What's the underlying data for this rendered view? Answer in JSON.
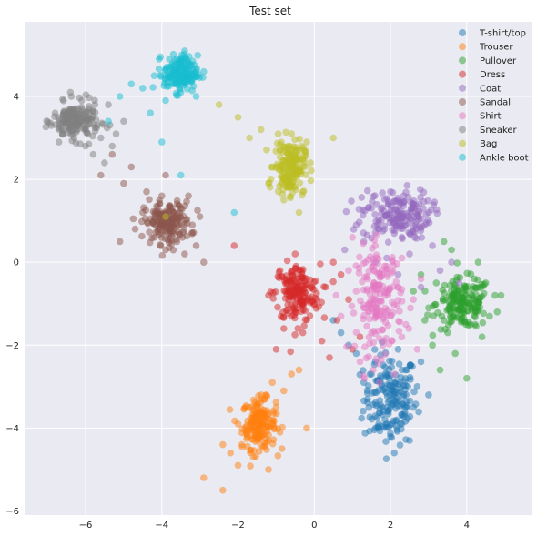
{
  "chart_data": {
    "type": "scatter",
    "title": "Test set",
    "xlabel": "",
    "ylabel": "",
    "xlim": [
      -7.6,
      5.7
    ],
    "ylim": [
      -6.1,
      5.8
    ],
    "xticks": [
      -6,
      -4,
      -2,
      0,
      2,
      4
    ],
    "yticks": [
      -6,
      -4,
      -2,
      0,
      2,
      4
    ],
    "xtick_labels": [
      "−6",
      "−4",
      "−2",
      "0",
      "2",
      "4"
    ],
    "ytick_labels": [
      "−6",
      "−4",
      "−2",
      "0",
      "2",
      "4"
    ],
    "grid": true,
    "background": "#EAEAF2",
    "legend_position": "top-right",
    "point_alpha": 0.5,
    "series": [
      {
        "name": "T-shirt/top",
        "color": "#1F77B4",
        "center": [
          2.0,
          -3.3
        ],
        "spread": [
          0.35,
          0.55
        ],
        "points": [
          [
            1.6,
            -2.4
          ],
          [
            2.4,
            -2.6
          ],
          [
            1.3,
            -2.9
          ],
          [
            2.7,
            -3.0
          ],
          [
            1.8,
            -3.6
          ],
          [
            2.3,
            -3.9
          ],
          [
            2.0,
            -4.2
          ],
          [
            1.4,
            -3.3
          ],
          [
            2.6,
            -3.5
          ],
          [
            1.1,
            -2.2
          ],
          [
            0.9,
            -2.0
          ],
          [
            2.1,
            -4.6
          ],
          [
            2.8,
            -2.4
          ],
          [
            1.7,
            -4.0
          ],
          [
            0.7,
            -1.7
          ],
          [
            2.2,
            -2.1
          ],
          [
            2.5,
            -4.3
          ],
          [
            1.5,
            -2.7
          ],
          [
            0.5,
            -1.4
          ],
          [
            3.0,
            -3.2
          ]
        ]
      },
      {
        "name": "Trouser",
        "color": "#FF7F0E",
        "center": [
          -1.45,
          -3.9
        ],
        "spread": [
          0.22,
          0.3
        ],
        "points": [
          [
            -1.9,
            -4.4
          ],
          [
            -2.2,
            -4.6
          ],
          [
            -2.0,
            -4.9
          ],
          [
            -1.6,
            -4.7
          ],
          [
            -2.4,
            -4.4
          ],
          [
            -1.2,
            -4.3
          ],
          [
            -1.0,
            -3.5
          ],
          [
            -0.8,
            -3.1
          ],
          [
            -1.3,
            -3.3
          ],
          [
            -2.9,
            -5.2
          ],
          [
            -2.4,
            -5.5
          ],
          [
            -1.2,
            -5.0
          ],
          [
            -0.9,
            -4.1
          ],
          [
            -0.6,
            -2.7
          ],
          [
            -0.4,
            -2.6
          ],
          [
            -1.8,
            -3.5
          ],
          [
            -2.0,
            -3.9
          ],
          [
            -1.1,
            -2.9
          ],
          [
            -0.2,
            -4.0
          ],
          [
            -1.5,
            -4.2
          ]
        ]
      },
      {
        "name": "Pullover",
        "color": "#2CA02C",
        "center": [
          3.9,
          -1.0
        ],
        "spread": [
          0.35,
          0.3
        ],
        "points": [
          [
            3.2,
            -0.5
          ],
          [
            4.6,
            -1.3
          ],
          [
            4.9,
            -0.8
          ],
          [
            3.5,
            -1.7
          ],
          [
            4.2,
            -0.4
          ],
          [
            3.0,
            -1.1
          ],
          [
            4.4,
            -1.8
          ],
          [
            4.0,
            -2.8
          ],
          [
            3.3,
            -2.6
          ],
          [
            2.9,
            -1.4
          ],
          [
            4.3,
            0.0
          ],
          [
            3.6,
            0.3
          ],
          [
            4.8,
            -1.2
          ],
          [
            2.8,
            -0.3
          ],
          [
            3.7,
            -2.2
          ],
          [
            4.1,
            -1.5
          ],
          [
            3.1,
            -2.0
          ],
          [
            4.5,
            -0.5
          ],
          [
            2.6,
            -0.7
          ],
          [
            3.4,
            0.5
          ]
        ]
      },
      {
        "name": "Dress",
        "color": "#D62728",
        "center": [
          -0.45,
          -0.75
        ],
        "spread": [
          0.3,
          0.35
        ],
        "points": [
          [
            -0.9,
            -0.2
          ],
          [
            -0.2,
            -0.4
          ],
          [
            -0.6,
            -1.3
          ],
          [
            0.0,
            -1.0
          ],
          [
            -0.8,
            -1.6
          ],
          [
            0.3,
            -0.6
          ],
          [
            0.6,
            -1.4
          ],
          [
            0.2,
            -1.9
          ],
          [
            -1.0,
            -2.1
          ],
          [
            -0.5,
            0.2
          ],
          [
            0.5,
            0.0
          ],
          [
            0.9,
            -0.9
          ],
          [
            -1.2,
            -0.8
          ],
          [
            1.0,
            -2.1
          ],
          [
            0.4,
            -2.3
          ],
          [
            -0.3,
            -1.7
          ],
          [
            -2.1,
            0.4
          ],
          [
            1.2,
            -1.8
          ],
          [
            -0.7,
            -0.7
          ],
          [
            0.7,
            -0.3
          ]
        ]
      },
      {
        "name": "Coat",
        "color": "#9467BD",
        "center": [
          2.15,
          1.15
        ],
        "spread": [
          0.45,
          0.3
        ],
        "points": [
          [
            1.7,
            0.8
          ],
          [
            2.6,
            1.4
          ],
          [
            2.3,
            0.6
          ],
          [
            1.5,
            1.3
          ],
          [
            2.9,
            0.9
          ],
          [
            2.0,
            1.7
          ],
          [
            2.5,
            0.2
          ],
          [
            3.1,
            0.4
          ],
          [
            1.3,
            0.5
          ],
          [
            3.3,
            -0.2
          ],
          [
            2.8,
            -0.6
          ],
          [
            1.9,
            0.1
          ],
          [
            3.6,
            0.0
          ],
          [
            2.4,
            1.0
          ],
          [
            1.6,
            0.0
          ],
          [
            1.1,
            0.9
          ],
          [
            3.0,
            1.2
          ],
          [
            2.2,
            -0.3
          ],
          [
            0.8,
            0.3
          ],
          [
            3.8,
            -0.5
          ]
        ]
      },
      {
        "name": "Sandal",
        "color": "#8C564B",
        "center": [
          -3.85,
          0.95
        ],
        "spread": [
          0.3,
          0.25
        ],
        "points": [
          [
            -4.2,
            0.6
          ],
          [
            -3.5,
            1.3
          ],
          [
            -3.9,
            0.3
          ],
          [
            -3.2,
            0.9
          ],
          [
            -4.5,
            1.2
          ],
          [
            -3.6,
            0.5
          ],
          [
            -4.4,
            1.7
          ],
          [
            -3.3,
            1.6
          ],
          [
            -5.0,
            1.9
          ],
          [
            -4.8,
            2.3
          ],
          [
            -5.3,
            2.6
          ],
          [
            -3.1,
            0.4
          ],
          [
            -4.0,
            1.6
          ],
          [
            -3.0,
            1.1
          ],
          [
            -5.1,
            0.5
          ],
          [
            -3.9,
            2.1
          ],
          [
            -5.6,
            2.1
          ],
          [
            -2.9,
            0.0
          ],
          [
            -4.7,
            0.8
          ],
          [
            -3.4,
            0.2
          ]
        ]
      },
      {
        "name": "Shirt",
        "color": "#E377C2",
        "center": [
          1.7,
          -0.9
        ],
        "spread": [
          0.3,
          0.65
        ],
        "points": [
          [
            1.4,
            -0.4
          ],
          [
            2.0,
            -1.3
          ],
          [
            1.8,
            -2.0
          ],
          [
            1.5,
            -1.7
          ],
          [
            2.2,
            -0.6
          ],
          [
            1.3,
            -1.1
          ],
          [
            1.9,
            -0.1
          ],
          [
            2.4,
            -1.5
          ],
          [
            1.1,
            -0.7
          ],
          [
            2.6,
            -0.9
          ],
          [
            0.9,
            -0.2
          ],
          [
            1.2,
            -2.4
          ],
          [
            2.1,
            -2.7
          ],
          [
            1.6,
            0.4
          ],
          [
            2.3,
            0.1
          ],
          [
            0.7,
            -1.3
          ],
          [
            2.7,
            -2.1
          ],
          [
            1.0,
            0.6
          ],
          [
            2.8,
            -0.4
          ],
          [
            1.7,
            -2.9
          ]
        ]
      },
      {
        "name": "Sneaker",
        "color": "#7F7F7F",
        "center": [
          -6.25,
          3.4
        ],
        "spread": [
          0.3,
          0.22
        ],
        "points": [
          [
            -6.6,
            3.1
          ],
          [
            -5.9,
            3.7
          ],
          [
            -6.3,
            3.0
          ],
          [
            -5.7,
            3.3
          ],
          [
            -6.8,
            3.6
          ],
          [
            -6.1,
            3.9
          ],
          [
            -6.5,
            3.5
          ],
          [
            -5.6,
            3.0
          ],
          [
            -6.9,
            3.3
          ],
          [
            -6.0,
            2.8
          ],
          [
            -5.4,
            3.8
          ],
          [
            -6.4,
            4.1
          ],
          [
            -5.2,
            3.1
          ],
          [
            -5.8,
            2.6
          ],
          [
            -5.5,
            2.4
          ],
          [
            -6.7,
            2.9
          ],
          [
            -5.0,
            3.4
          ],
          [
            -6.2,
            3.4
          ],
          [
            -5.3,
            2.8
          ],
          [
            -6.0,
            3.2
          ]
        ]
      },
      {
        "name": "Bag",
        "color": "#BCBD22",
        "center": [
          -0.65,
          2.3
        ],
        "spread": [
          0.2,
          0.32
        ],
        "points": [
          [
            -0.8,
            2.0
          ],
          [
            -0.5,
            2.6
          ],
          [
            -0.7,
            1.8
          ],
          [
            -0.4,
            2.2
          ],
          [
            -0.9,
            2.7
          ],
          [
            -0.6,
            3.1
          ],
          [
            -0.3,
            1.7
          ],
          [
            -1.1,
            2.3
          ],
          [
            -0.2,
            2.9
          ],
          [
            -1.4,
            3.2
          ],
          [
            -1.7,
            3.0
          ],
          [
            -0.1,
            2.4
          ],
          [
            -1.2,
            1.9
          ],
          [
            0.5,
            3.0
          ],
          [
            -2.0,
            3.5
          ],
          [
            -0.4,
            1.2
          ],
          [
            -2.5,
            3.8
          ],
          [
            -3.9,
            1.1
          ],
          [
            -0.6,
            2.5
          ],
          [
            -0.8,
            1.5
          ]
        ]
      },
      {
        "name": "Ankle boot",
        "color": "#17BECF",
        "center": [
          -3.5,
          4.55
        ],
        "spread": [
          0.22,
          0.22
        ],
        "points": [
          [
            -3.7,
            4.3
          ],
          [
            -3.3,
            4.8
          ],
          [
            -3.5,
            4.1
          ],
          [
            -3.2,
            4.4
          ],
          [
            -3.8,
            4.9
          ],
          [
            -3.4,
            5.1
          ],
          [
            -3.6,
            4.6
          ],
          [
            -4.2,
            4.5
          ],
          [
            -4.5,
            4.2
          ],
          [
            -4.8,
            4.3
          ],
          [
            -5.1,
            4.0
          ],
          [
            -3.9,
            3.9
          ],
          [
            -4.3,
            3.6
          ],
          [
            -3.1,
            4.0
          ],
          [
            -2.9,
            4.6
          ],
          [
            -4.0,
            2.9
          ],
          [
            -2.1,
            1.2
          ],
          [
            -3.5,
            2.1
          ],
          [
            -5.4,
            3.4
          ],
          [
            -3.7,
            4.5
          ]
        ]
      }
    ]
  }
}
